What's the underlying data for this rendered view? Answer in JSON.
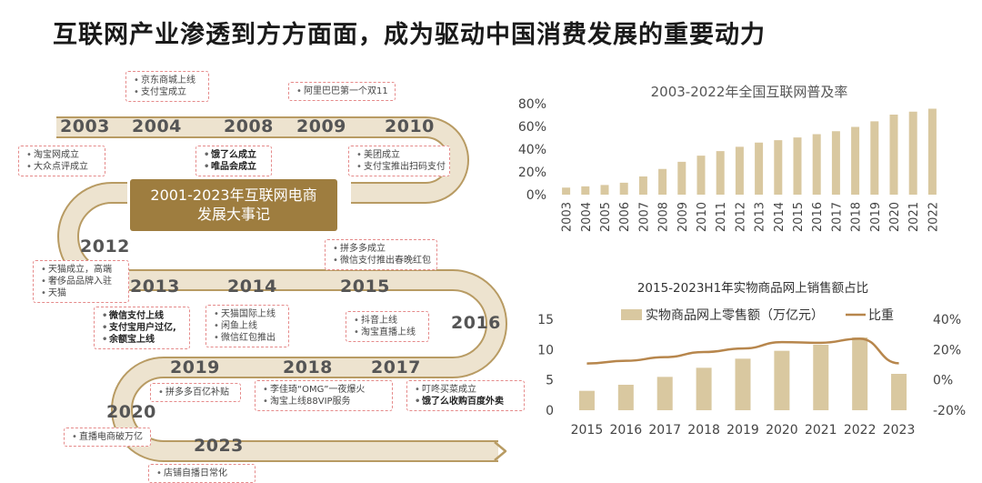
{
  "page": {
    "title": "互联网产业渗透到方方面面，成为驱动中国消费发展的重要动力"
  },
  "timeline": {
    "center_title_line1": "2001-2023年互联网电商",
    "center_title_line2": "发展大事记",
    "years": [
      "2003",
      "2004",
      "2008",
      "2009",
      "2010",
      "2012",
      "2013",
      "2014",
      "2015",
      "2016",
      "2019",
      "2018",
      "2017",
      "2020",
      "2023"
    ],
    "events": {
      "e2003": [
        "淘宝网成立",
        "大众点评成立"
      ],
      "e2004": [
        "京东商城上线",
        "支付宝成立"
      ],
      "e2008": [
        "饿了么成立",
        "唯品会成立"
      ],
      "e2009": [
        "阿里巴巴第一个双11"
      ],
      "e2010": [
        "美团成立",
        "支付宝推出扫码支付"
      ],
      "e2012": [
        "天猫成立，高端",
        "奢侈品品牌入驻",
        "天猫"
      ],
      "e2013": [
        "微信支付上线",
        "支付宝用户过亿,",
        "余额宝上线"
      ],
      "e2014": [
        "天猫国际上线",
        "闲鱼上线",
        "微信红包推出"
      ],
      "e2015": [
        "拼多多成立",
        "微信支付推出春晚红包"
      ],
      "e2016": [
        "抖音上线",
        "淘宝直播上线"
      ],
      "e2019": [
        "拼多多百亿补贴"
      ],
      "e2018": [
        "李佳琦“OMG”一夜爆火",
        "淘宝上线88VIP服务"
      ],
      "e2017": [
        "叮咚买菜成立",
        "饿了么收购百度外卖"
      ],
      "e2020": [
        "直播电商破万亿"
      ],
      "e2023": [
        "店铺自播日常化"
      ]
    },
    "colors": {
      "road": "#ede3cf",
      "road_edge": "#b89b63",
      "accent": "#9e7d3f",
      "dash": "#e58a8a"
    }
  },
  "chart_data": [
    {
      "type": "bar",
      "title": "2003-2022年全国互联网普及率",
      "categories": [
        "2003",
        "2004",
        "2005",
        "2006",
        "2007",
        "2008",
        "2009",
        "2010",
        "2011",
        "2012",
        "2013",
        "2014",
        "2015",
        "2016",
        "2017",
        "2018",
        "2019",
        "2020",
        "2021",
        "2022"
      ],
      "values": [
        6.2,
        7.3,
        8.5,
        10.5,
        16.0,
        22.6,
        28.9,
        34.3,
        38.3,
        42.1,
        45.8,
        47.9,
        50.3,
        53.2,
        55.8,
        59.6,
        64.5,
        70.4,
        73.0,
        75.6
      ],
      "yticks": [
        "0%",
        "20%",
        "40%",
        "60%",
        "80%"
      ],
      "ylim": [
        0,
        80
      ],
      "color": "#d9c8a0"
    },
    {
      "type": "bar+line",
      "title": "2015-2023H1年实物商品网上销售额占比",
      "categories": [
        "2015",
        "2016",
        "2017",
        "2018",
        "2019",
        "2020",
        "2021",
        "2022",
        "2023"
      ],
      "series": [
        {
          "name": "实物商品网上零售额（万亿元）",
          "type": "bar",
          "axis": "left",
          "values": [
            3.2,
            4.2,
            5.5,
            7.0,
            8.5,
            9.8,
            10.8,
            12.0,
            6.0
          ],
          "color": "#d9c8a0"
        },
        {
          "name": "比重",
          "type": "line",
          "axis": "right",
          "values": [
            10.8,
            12.6,
            15.0,
            18.4,
            20.7,
            24.9,
            24.5,
            27.2,
            11.0
          ],
          "color": "#b7864c"
        }
      ],
      "left_yticks": [
        "0",
        "5",
        "10",
        "15"
      ],
      "left_ylim": [
        0,
        15
      ],
      "right_yticks": [
        "-20%",
        "0%",
        "20%",
        "40%"
      ],
      "right_ylim": [
        -20,
        40
      ]
    }
  ]
}
